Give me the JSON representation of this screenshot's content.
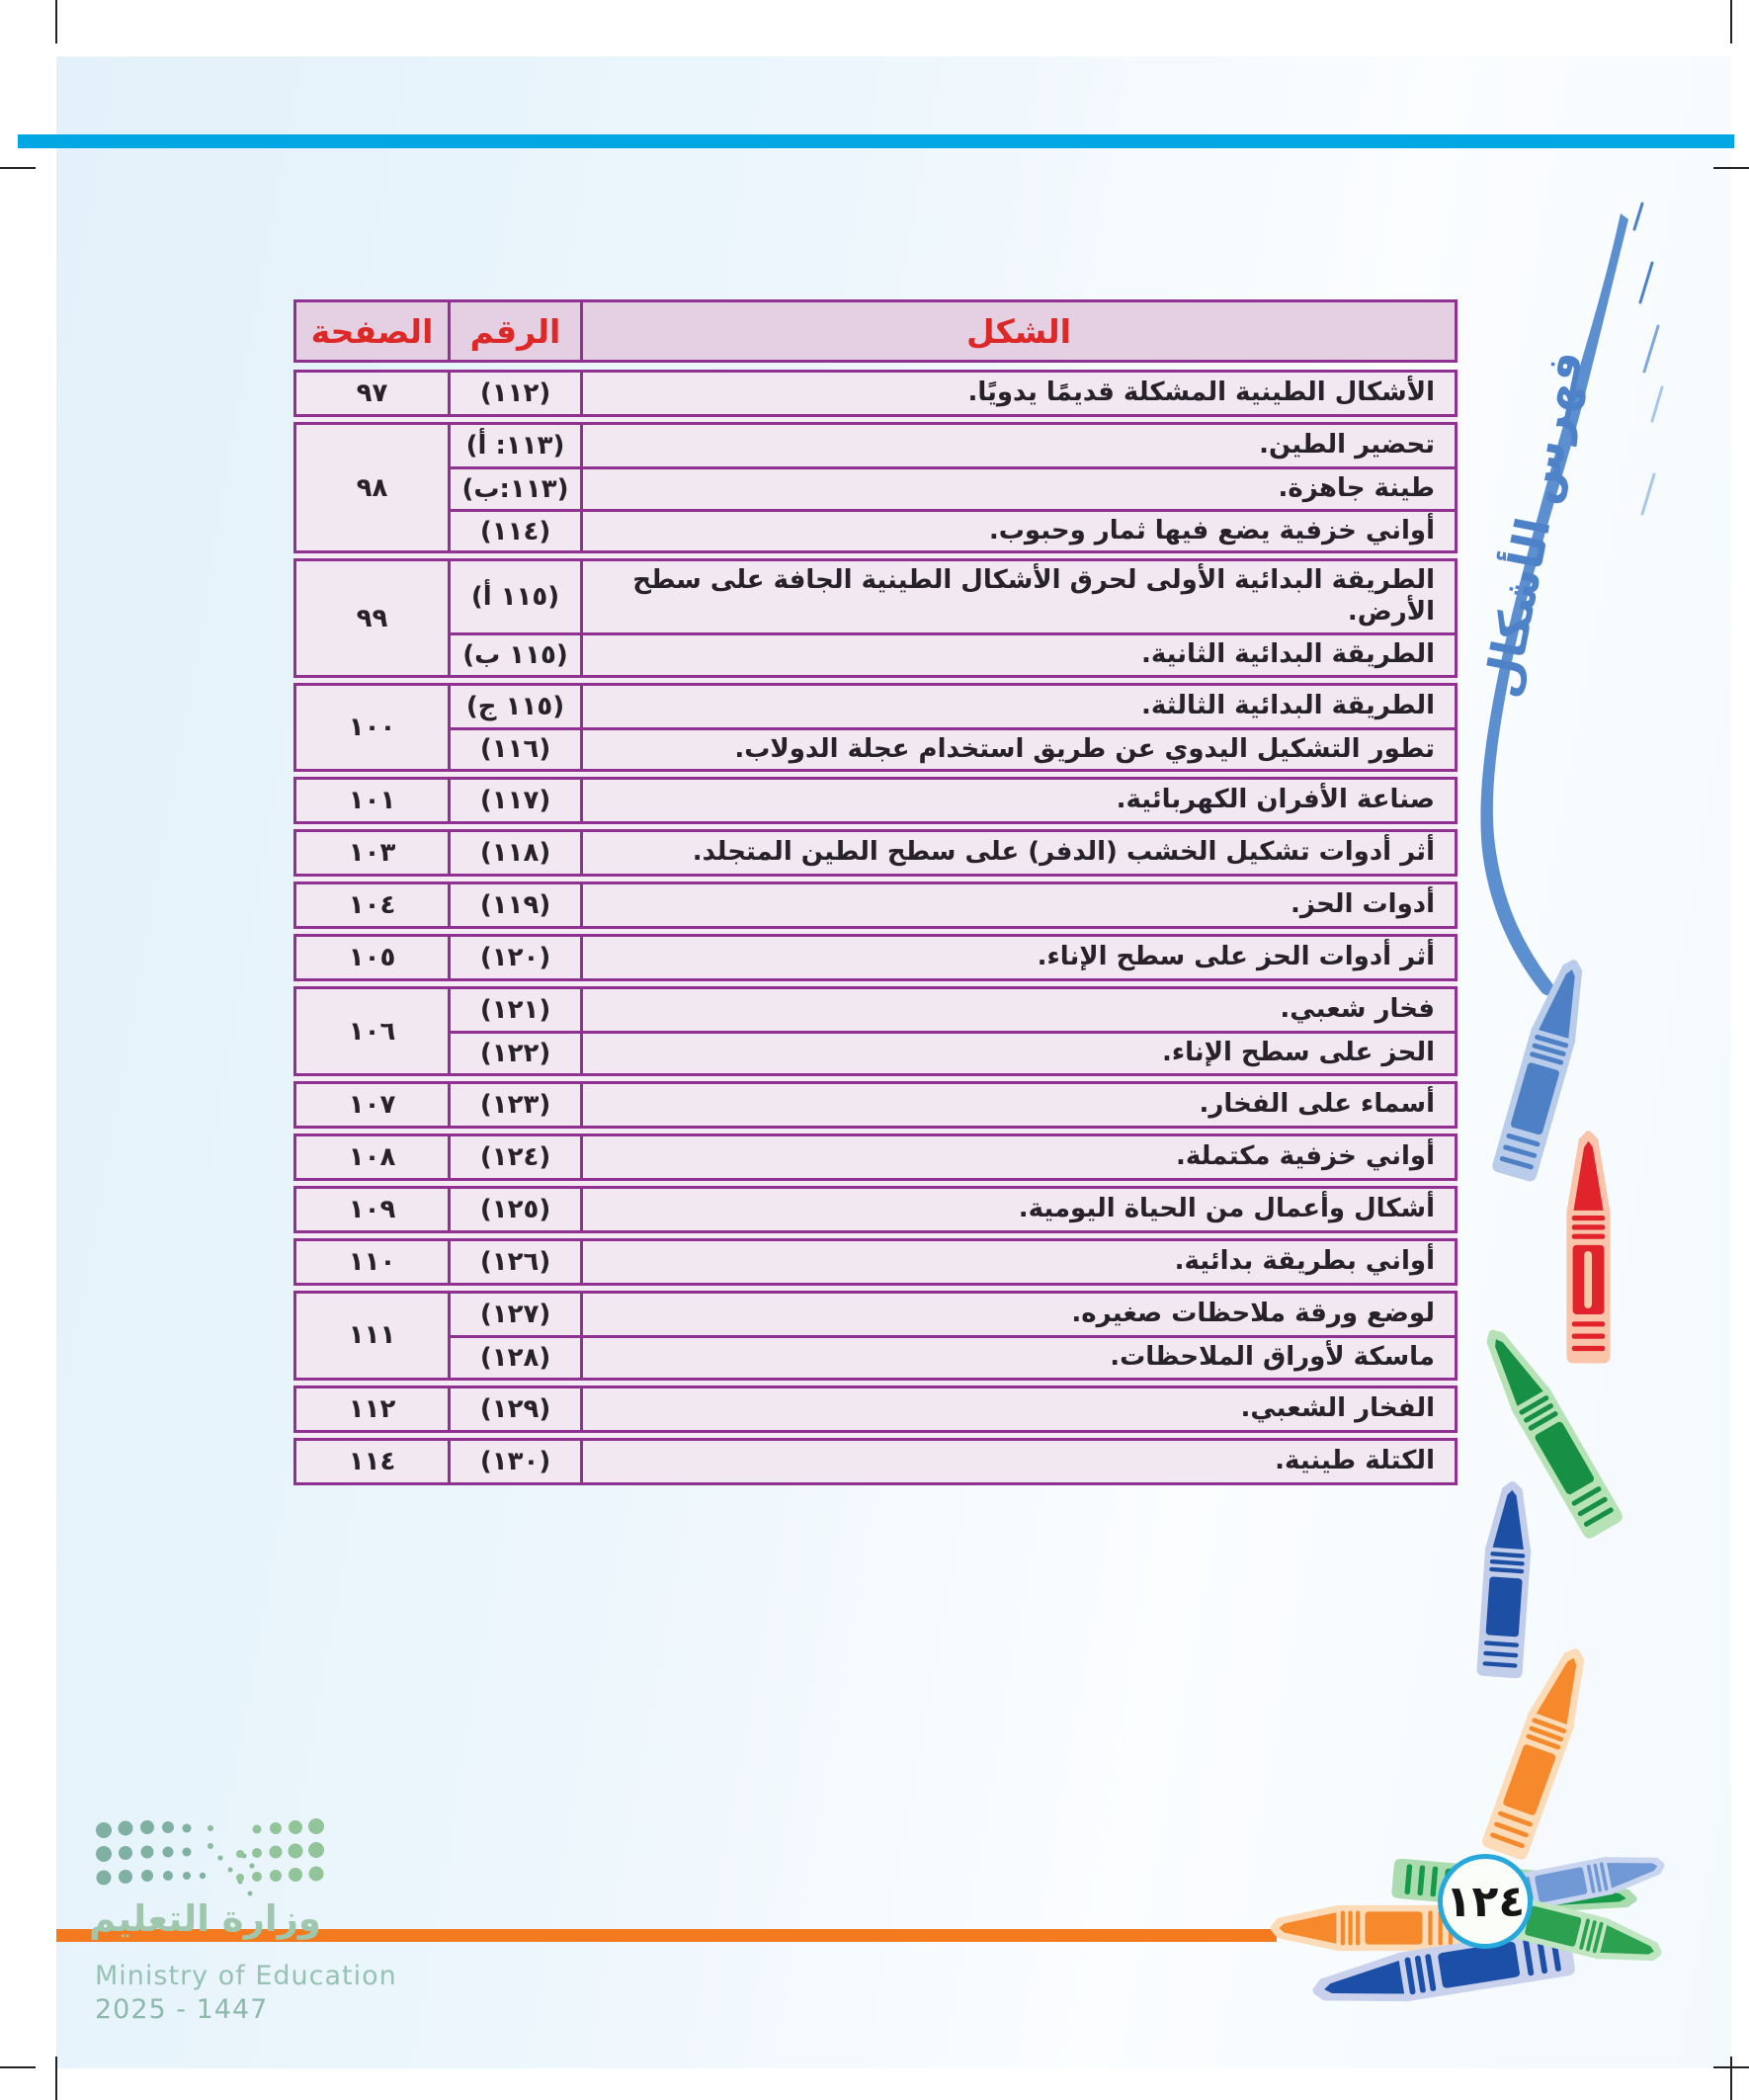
{
  "page": {
    "side_title": "فهرس الأشكال",
    "page_number": "١٢٤"
  },
  "table": {
    "headers": {
      "figure": "الشكل",
      "number": "الرقم",
      "page": "الصفحة"
    },
    "groups": [
      {
        "page": "٩٧",
        "rows": [
          {
            "num": "(١١٢)",
            "desc": "الأشكال الطينية المشكلة قديمًا يدويًا."
          }
        ]
      },
      {
        "page": "٩٨",
        "rows": [
          {
            "num": "(١١٣: أ)",
            "desc": "تحضير الطين."
          },
          {
            "num": "(١١٣:ب)",
            "desc": "طينة جاهزة."
          },
          {
            "num": "(١١٤)",
            "desc": "أواني خزفية يضع فيها ثمار وحبوب."
          }
        ]
      },
      {
        "page": "٩٩",
        "rows": [
          {
            "num": "(١١٥ أ)",
            "desc": "الطريقة البدائية الأولى لحرق الأشكال الطينية الجافة على سطح الأرض."
          },
          {
            "num": "(١١٥ ب)",
            "desc": "الطريقة البدائية الثانية."
          }
        ]
      },
      {
        "page": "١٠٠",
        "rows": [
          {
            "num": "(١١٥ ج)",
            "desc": "الطريقة البدائية الثالثة."
          },
          {
            "num": "(١١٦)",
            "desc": "تطور التشكيل اليدوي عن طريق استخدام عجلة الدولاب."
          }
        ]
      },
      {
        "page": "١٠١",
        "rows": [
          {
            "num": "(١١٧)",
            "desc": "صناعة الأفران الكهربائية."
          }
        ]
      },
      {
        "page": "١٠٣",
        "rows": [
          {
            "num": "(١١٨)",
            "desc": "أثر أدوات تشكيل الخشب  (الدفر) على سطح الطين المتجلد."
          }
        ]
      },
      {
        "page": "١٠٤",
        "rows": [
          {
            "num": "(١١٩)",
            "desc": "أدوات الحز."
          }
        ]
      },
      {
        "page": "١٠٥",
        "rows": [
          {
            "num": "(١٢٠)",
            "desc": "أثر أدوات الحز على سطح الإناء."
          }
        ]
      },
      {
        "page": "١٠٦",
        "rows": [
          {
            "num": "(١٢١)",
            "desc": "فخار شعبي."
          },
          {
            "num": "(١٢٢)",
            "desc": "الحز على سطح الإناء."
          }
        ]
      },
      {
        "page": "١٠٧",
        "rows": [
          {
            "num": "(١٢٣)",
            "desc": "أسماء على الفخار."
          }
        ]
      },
      {
        "page": "١٠٨",
        "rows": [
          {
            "num": "(١٢٤)",
            "desc": "أواني خزفية مكتملة."
          }
        ]
      },
      {
        "page": "١٠٩",
        "rows": [
          {
            "num": "(١٢٥)",
            "desc": "أشكال وأعمال من الحياة اليومية."
          }
        ]
      },
      {
        "page": "١١٠",
        "rows": [
          {
            "num": "(١٢٦)",
            "desc": "أواني بطريقة بدائية."
          }
        ]
      },
      {
        "page": "١١١",
        "rows": [
          {
            "num": "(١٢٧)",
            "desc": "لوضع ورقة ملاحظات صغيره."
          },
          {
            "num": "(١٢٨)",
            "desc": "ماسكة لأوراق الملاحظات."
          }
        ]
      },
      {
        "page": "١١٢",
        "rows": [
          {
            "num": "(١٢٩)",
            "desc": "الفخار الشعبي."
          }
        ]
      },
      {
        "page": "١١٤",
        "rows": [
          {
            "num": "(١٣٠)",
            "desc": "الكتلة طينية."
          }
        ]
      }
    ]
  },
  "footer": {
    "ministry_ar": "وزارة التعليم",
    "ministry_en": "Ministry of Education",
    "edition_years": "2025 - 1447"
  },
  "colors": {
    "top_bar": "#00a7e3",
    "bottom_bar": "#f47a20",
    "table_border": "#8e3190",
    "table_header_bg": "#e5d0e3",
    "table_header_text": "#dd2828",
    "table_row_bg": "#f2e8f2",
    "side_title_blue": "#4e82c8",
    "page_circle_border": "#27a8dc",
    "crayons": [
      "#4d80c4",
      "#e1232b",
      "#178f45",
      "#1d4fa5",
      "#f6892b",
      "#169a49",
      "#7099d6",
      "#2ca150",
      "#1b4fa8"
    ]
  }
}
